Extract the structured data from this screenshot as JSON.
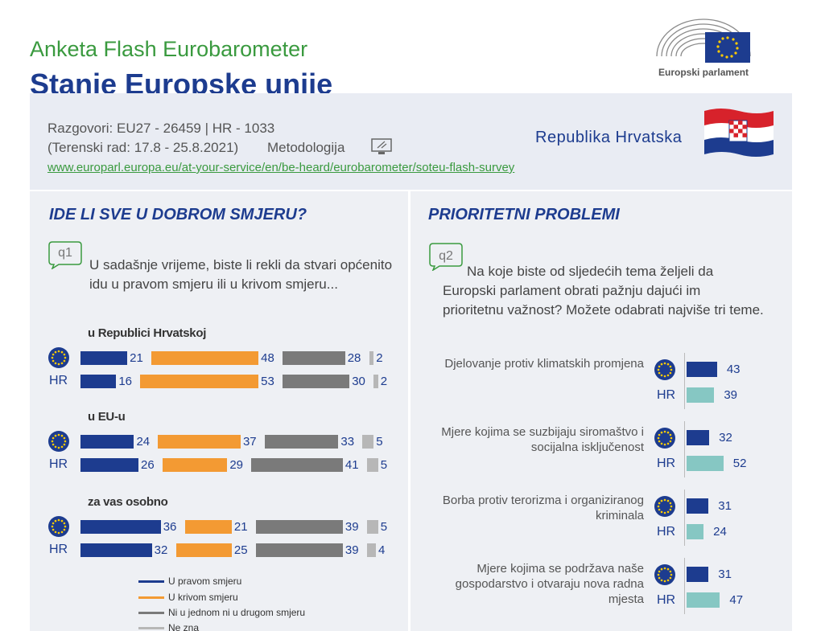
{
  "header": {
    "subtitle": "Anketa Flash Eurobarometer",
    "title": "Stanje Europske unije",
    "logo_text": "Europski parlament"
  },
  "info": {
    "line1": "Razgovori: EU27 - 26459 | HR - 1033",
    "line2": "(Terenski rad: 17.8 - 25.8.2021)",
    "methodology": "Metodologija",
    "link": "www.europarl.europa.eu/at-your-service/en/be-heard/eurobarometer/soteu-flash-survey",
    "country": "Republika Hrvatska"
  },
  "colors": {
    "right": "#1d3c8f",
    "wrong": "#f39a33",
    "neither": "#7a7a7a",
    "dontknow": "#b7b7b7",
    "eu": "#1d3c8f",
    "hr": "#86c7c3",
    "green": "#3a9a3f"
  },
  "left": {
    "title": "IDE LI SVE U DOBROM SMJERU?",
    "q_label": "q1",
    "question": "U sadašnje vrijeme, biste li rekli da stvari općenito idu u pravom smjeru ili u krivom smjeru...",
    "row_label_hr": "HR",
    "eu_icon": "eu-flag-icon"
  },
  "right": {
    "title": "PRIORITETNI PROBLEMI",
    "q_label": "q2",
    "question": "Na koje biste od sljedećih tema željeli da Europski parlament obrati pažnju dajući im prioritetnu važnost? Možete odabrati najviše tri teme.",
    "row_label_hr": "HR"
  },
  "chart_data": [
    {
      "type": "bar",
      "stacked": true,
      "orientation": "horizontal",
      "title": "IDE LI SVE U DOBROM SMJERU?",
      "legend": [
        "U pravom smjeru",
        "U krivom smjeru",
        "Ni u jednom ni u drugom smjeru",
        "Ne zna"
      ],
      "groups": [
        {
          "label": "u Republici Hrvatskoj",
          "rows": [
            {
              "row": "EU27",
              "values": [
                21,
                48,
                28,
                2
              ]
            },
            {
              "row": "HR",
              "values": [
                16,
                53,
                30,
                2
              ]
            }
          ]
        },
        {
          "label": "u EU-u",
          "rows": [
            {
              "row": "EU27",
              "values": [
                24,
                37,
                33,
                5
              ]
            },
            {
              "row": "HR",
              "values": [
                26,
                29,
                41,
                5
              ]
            }
          ]
        },
        {
          "label": "za vas osobno",
          "rows": [
            {
              "row": "EU27",
              "values": [
                36,
                21,
                39,
                5
              ]
            },
            {
              "row": "HR",
              "values": [
                32,
                25,
                39,
                4
              ]
            }
          ]
        }
      ]
    },
    {
      "type": "bar",
      "orientation": "horizontal",
      "title": "PRIORITETNI PROBLEMI",
      "series_rows": [
        "EU27",
        "HR"
      ],
      "topics": [
        {
          "label": "Djelovanje protiv klimatskih promjena",
          "eu": 43,
          "hr": 39
        },
        {
          "label": "Mjere kojima se suzbijaju siromaštvo i socijalna isključenost",
          "eu": 32,
          "hr": 52
        },
        {
          "label": "Borba protiv terorizma i organiziranog kriminala",
          "eu": 31,
          "hr": 24
        },
        {
          "label": "Mjere kojima se podržava naše gospodarstvo i otvaraju nova radna mjesta",
          "eu": 31,
          "hr": 47
        }
      ]
    }
  ]
}
